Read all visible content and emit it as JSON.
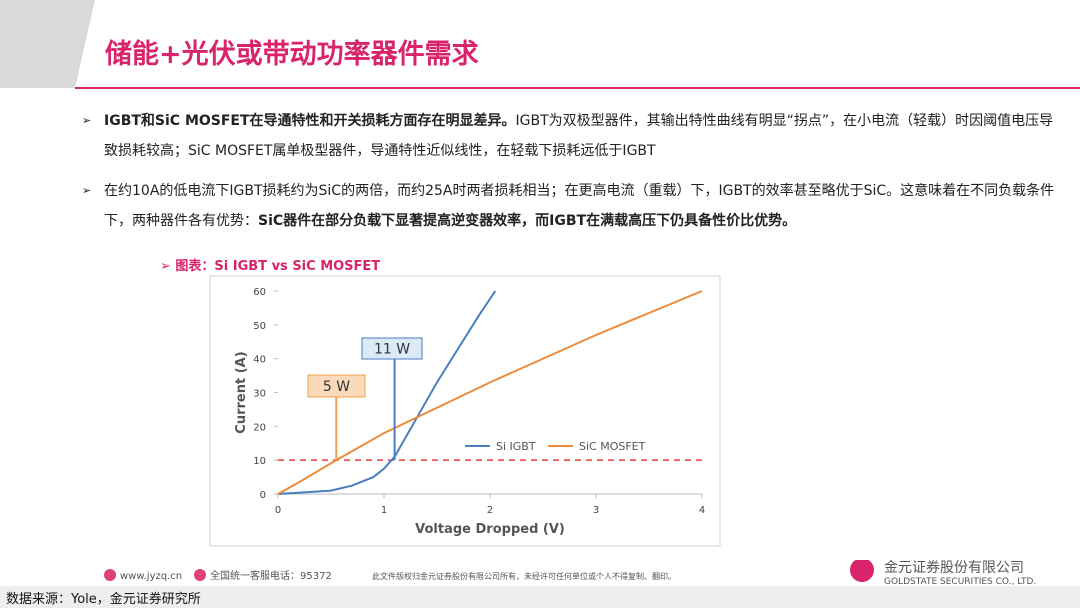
{
  "header": {
    "title": "储能+光伏或带动功率器件需求"
  },
  "bullets": [
    [
      {
        "text": "IGBT和SiC  MOSFET在导通特性和开关损耗方面存在明显差异。",
        "bold": true
      },
      {
        "text": "IGBT为双极型器件，其输出特性曲线有明显“拐点”，在小电流（轻载）时因阈值电压导致损耗较高；SiC MOSFET属单极型器件，导通特性近似线性，在轻载下损耗远低于IGBT",
        "bold": false
      }
    ],
    [
      {
        "text": "在约10A的低电流下IGBT损耗约为SiC的两倍，而约25A时两者损耗相当；在更高电流（重载）下，IGBT的效率甚至略优于SiC。这意味着在不同负载条件下，两种器件各有优势：",
        "bold": false
      },
      {
        "text": "SiC器件在部分负载下显著提高逆变器效率，而IGBT在满载高压下仍具备性价比优势。",
        "bold": true
      }
    ]
  ],
  "chart_caption": "图表：Si IGBT vs SiC MOSFET",
  "chart_data": {
    "type": "line",
    "xlabel": "Voltage Dropped (V)",
    "ylabel": "Current (A)",
    "xlim": [
      0,
      4
    ],
    "ylim": [
      0,
      60
    ],
    "xticks": [
      0,
      1,
      2,
      3,
      4
    ],
    "yticks": [
      0,
      10,
      20,
      30,
      40,
      50,
      60
    ],
    "legend": "center-right",
    "series": [
      {
        "name": "Si IGBT",
        "color": "#4a7ebf",
        "x": [
          0,
          0.5,
          0.7,
          0.9,
          1,
          1.1,
          1.3,
          1.5,
          1.7,
          1.9,
          2.05
        ],
        "values": [
          0,
          1,
          2.5,
          5,
          7.5,
          11,
          22,
          33,
          43,
          53,
          60
        ]
      },
      {
        "name": "SiC MOSFET",
        "color": "#ed8b3a",
        "x": [
          0,
          0.2,
          0.55,
          1,
          2,
          3,
          4
        ],
        "values": [
          0,
          3.5,
          10,
          18,
          33,
          47,
          60
        ]
      }
    ],
    "reference_line": {
      "value": 10,
      "color": "#e0403a"
    },
    "annotations": [
      {
        "text": "11 W",
        "x": 1.1,
        "color": "#4a7ebf",
        "fill": "#dce9f7"
      },
      {
        "text": "5 W",
        "x": 0.55,
        "color": "#f0a050",
        "fill": "#fbdabb"
      }
    ]
  },
  "footer": {
    "website": "www.jyzq.cn",
    "hotline": "全国统一客服电话：95372",
    "copyright": "此文件版权归金元证券股份有限公司所有，未经许可任何单位或个人不得复制、翻印。",
    "company": "金元证券股份有限公司",
    "company_en": "GOLDSTATE SECURITIES CO., LTD.",
    "source": "数据来源：Yole，金元证券研究所"
  }
}
